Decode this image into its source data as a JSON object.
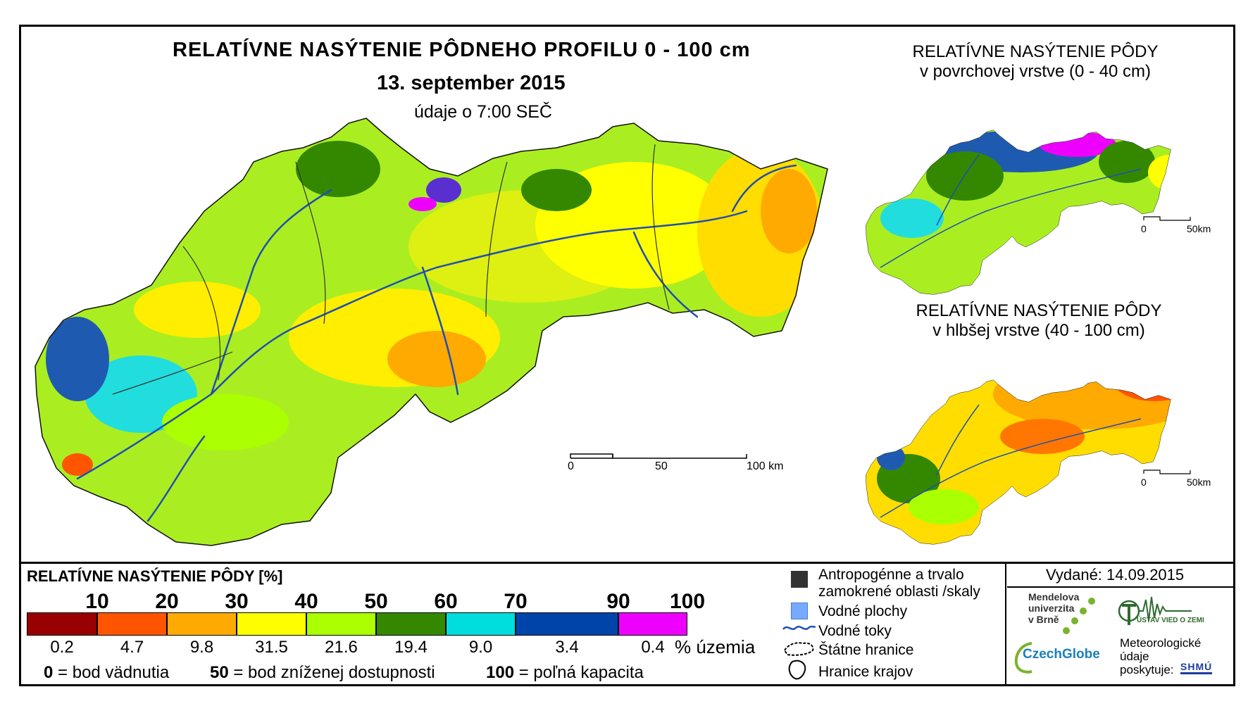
{
  "main": {
    "title": "RELATÍVNE NASÝTENIE PÔDNEHO PROFILU 0 - 100 cm",
    "date": "13. september 2015",
    "time": "údaje o 7:00 SEČ",
    "scale": {
      "label_0": "0",
      "label_50": "50",
      "label_100": "100 km"
    }
  },
  "inset_top": {
    "title_line1": "RELATÍVNE NASÝTENIE PÔDY",
    "title_line2": "v povrchovej vrstve (0 - 40 cm)",
    "scale": {
      "label_0": "0",
      "label_50": "50km"
    }
  },
  "inset_bottom": {
    "title_line1": "RELATÍVNE NASÝTENIE PÔDY",
    "title_line2": "v hlbšej vrstve (40 - 100 cm)",
    "scale": {
      "label_0": "0",
      "label_50": "50km"
    }
  },
  "legend": {
    "title": "RELATÍVNE NASÝTENIE PÔDY [%]",
    "thresholds": [
      "10",
      "20",
      "30",
      "40",
      "50",
      "60",
      "70",
      "90",
      "100"
    ],
    "classes": [
      {
        "color": "#990000",
        "share": "0.2"
      },
      {
        "color": "#ff5500",
        "share": "4.7"
      },
      {
        "color": "#ffaa00",
        "share": "9.8"
      },
      {
        "color": "#ffff00",
        "share": "31.5"
      },
      {
        "color": "#aaff00",
        "share": "21.6"
      },
      {
        "color": "#338800",
        "share": "19.4"
      },
      {
        "color": "#00dddd",
        "share": "9.0"
      },
      {
        "color": "#0044aa",
        "share": "3.4"
      },
      {
        "color": "#ee00ff",
        "share": "0.4"
      }
    ],
    "share_unit": "% územia",
    "note0_num": "0",
    "note0_text": "= bod vädnutia",
    "note50_num": "50",
    "note50_text": "= bod zníženej dostupnosti",
    "note100_num": "100",
    "note100_text": "= poľná kapacita"
  },
  "symbols": {
    "anthropogenic_line1": "Antropogénne a trvalo",
    "anthropogenic_line2": "zamokrené oblasti /skaly",
    "water_bodies": "Vodné plochy",
    "rivers": "Vodné toky",
    "state_border": "Štátne hranice",
    "regions_border": "Hranice krajov"
  },
  "issued": "Vydané: 14.09.2015",
  "credits": {
    "mendel_line1": "Mendelova",
    "mendel_line2": "univerzita",
    "mendel_line3": "v Brně",
    "czechglobe": "CzechGlobe",
    "uvoz": "ÚSTAV VIED O ZEMI",
    "shmu_line1": "Meteorologické",
    "shmu_line2": "údaje",
    "shmu_line3": "poskytuje:",
    "shmu_logo": "SHMÚ"
  },
  "colors": {
    "river": "#1f4fb0",
    "anthropogenic": "#333333",
    "water": "#77aaff"
  }
}
